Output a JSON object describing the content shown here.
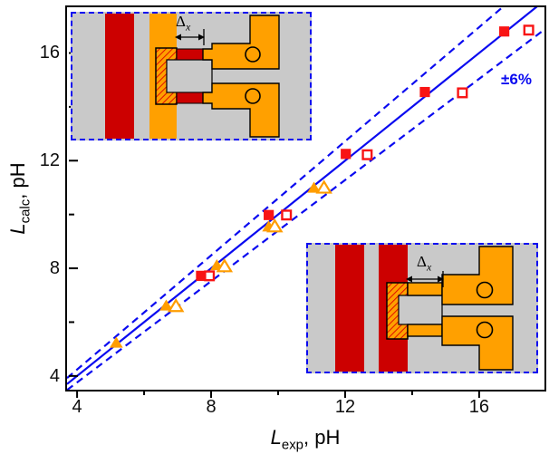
{
  "figure": {
    "background": "#ffffff",
    "colors": {
      "accent_blue": "#0a0af0",
      "marker_red": "#f81414",
      "marker_orange": "#ff9d00",
      "inset_red": "#cc0000",
      "inset_orange": "#ffa000",
      "inset_gray": "#c9c9c9",
      "hatch_stripe": "#e01000",
      "axis_black": "#000000"
    }
  },
  "chart_data": {
    "type": "scatter",
    "title": "",
    "xlabel": {
      "var": "L",
      "sub": "exp",
      "unit": ", pH"
    },
    "ylabel": {
      "var": "L",
      "sub": "calc",
      "unit": ", pH"
    },
    "x_range": [
      3.7,
      17.95
    ],
    "y_range": [
      3.49,
      17.7
    ],
    "x_ticks": {
      "major": [
        4,
        8,
        12,
        16
      ],
      "minor": [
        6,
        10,
        14
      ]
    },
    "y_ticks": {
      "major": [
        4,
        8,
        12,
        16
      ],
      "minor": [
        6,
        10,
        14
      ]
    },
    "x_tick_labels": [
      "4",
      "8",
      "12",
      "16"
    ],
    "y_tick_labels": [
      "4",
      "8",
      "12",
      "16"
    ],
    "grid": false,
    "legend": "none",
    "lines": [
      {
        "name": "identity-line",
        "slope": 1.0,
        "style": "solid"
      },
      {
        "name": "upper-bound-line",
        "slope": 1.06,
        "style": "dashed"
      },
      {
        "name": "lower-bound-line",
        "slope": 0.94,
        "style": "dashed"
      }
    ],
    "bounds_label": "±6%",
    "series": [
      {
        "name": "filled-squares",
        "marker": "square",
        "fill": "filled",
        "color": "#f81414",
        "points": [
          [
            7.7,
            7.72
          ],
          [
            9.72,
            9.98
          ],
          [
            12.02,
            12.25
          ],
          [
            14.38,
            14.55
          ],
          [
            16.75,
            16.8
          ]
        ]
      },
      {
        "name": "open-squares",
        "marker": "square",
        "fill": "open",
        "color": "#f81414",
        "points": [
          [
            7.95,
            7.72
          ],
          [
            10.25,
            9.98
          ],
          [
            12.66,
            12.22
          ],
          [
            15.5,
            14.52
          ],
          [
            17.48,
            16.85
          ]
        ]
      },
      {
        "name": "filled-triangles",
        "marker": "triangle",
        "fill": "filled",
        "color": "#ff9d00",
        "points": [
          [
            5.17,
            5.24
          ],
          [
            6.66,
            6.62
          ],
          [
            8.17,
            8.12
          ],
          [
            9.72,
            9.56
          ],
          [
            11.07,
            11.0
          ]
        ]
      },
      {
        "name": "open-triangles",
        "marker": "triangle",
        "fill": "open",
        "color": "#ff9d00",
        "points": [
          [
            6.95,
            6.6
          ],
          [
            8.4,
            8.08
          ],
          [
            9.9,
            9.56
          ],
          [
            11.37,
            11.0
          ]
        ]
      }
    ]
  },
  "insets": [
    {
      "id": "top-left-layout",
      "delta_label": {
        "main": "Δ",
        "sub": "x"
      }
    },
    {
      "id": "bottom-right-layout",
      "delta_label": {
        "main": "Δ",
        "sub": "x"
      }
    }
  ]
}
